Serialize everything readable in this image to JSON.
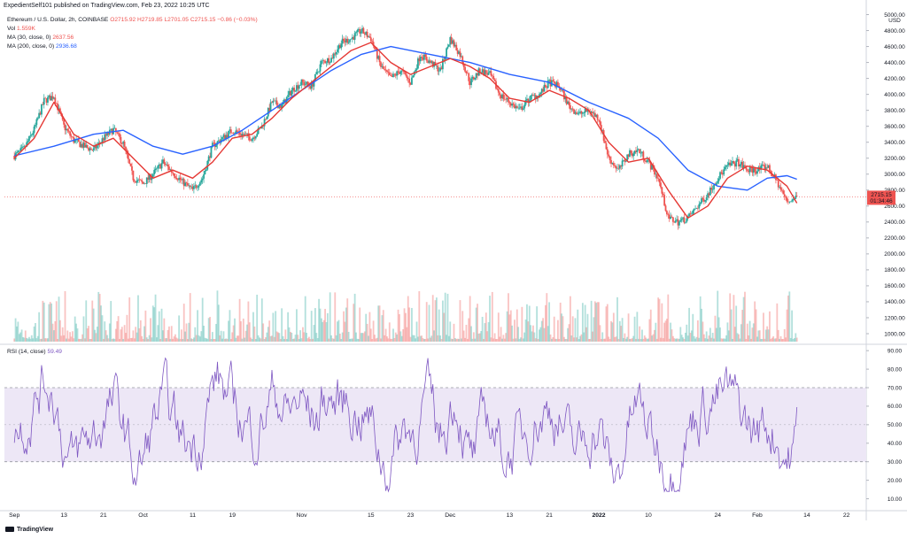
{
  "header": {
    "publisher": "ExpedientSelf101 published on TradingView.com, Feb 23, 2022 10:25 UTC"
  },
  "legend": {
    "symbol": "Ethereum / U.S. Dollar, 2h, COINBASE",
    "open": "O2715.92",
    "high": "H2719.85",
    "low": "L2701.05",
    "close": "C2715.15",
    "change": "−0.86 (−0.03%)",
    "vol_label": "Vol",
    "vol_value": "1.559K",
    "ma30_label": "MA (30, close, 0)",
    "ma30_value": "2637.56",
    "ma200_label": "MA (200, close, 0)",
    "ma200_value": "2936.68",
    "rsi_label": "RSI (14, close)",
    "rsi_value": "59.49"
  },
  "price_badge": {
    "price": "2715.15",
    "countdown": "01:34:46"
  },
  "currency_label": "USD",
  "footer": {
    "brand": "TradingView"
  },
  "colors": {
    "up": "#26a69a",
    "down": "#ef5350",
    "ma30": "#e53935",
    "ma200": "#2962ff",
    "rsi": "#7e57c2",
    "rsi_band": "#ede7f6"
  },
  "chart_data": [
    {
      "type": "candlestick",
      "panel": "price",
      "yticks": [
        1000,
        1200,
        1400,
        1600,
        1800,
        2000,
        2200,
        2400,
        2600,
        2800,
        3000,
        3200,
        3400,
        3600,
        3800,
        4000,
        4200,
        4400,
        4600,
        4800,
        5000
      ],
      "yticks_labels": [
        "1000.00",
        "1200.00",
        "1400.00",
        "1600.00",
        "1800.00",
        "2000.00",
        "2200.00",
        "2400.00",
        "2600.00",
        "2800.00",
        "3000.00",
        "3200.00",
        "3400.00",
        "3600.00",
        "3800.00",
        "4000.00",
        "4200.00",
        "4400.00",
        "4600.00",
        "4800.00",
        "5000.00"
      ],
      "ylim": [
        900,
        5050
      ],
      "x_ticks": [
        "Sep",
        "13",
        "21",
        "Oct",
        "11",
        "19",
        "Nov",
        "15",
        "23",
        "Dec",
        "13",
        "21",
        "2022",
        "10",
        "24",
        "Feb",
        "14",
        "22"
      ],
      "x_ticks_day_index": [
        0,
        10,
        18,
        26,
        36,
        44,
        58,
        72,
        80,
        88,
        100,
        108,
        118,
        128,
        142,
        150,
        160,
        168
      ],
      "x_range_days": [
        -2,
        172
      ],
      "close_series": [
        [
          0,
          3230
        ],
        [
          2,
          3320
        ],
        [
          4,
          3560
        ],
        [
          6,
          3920
        ],
        [
          8,
          3980
        ],
        [
          10,
          3600
        ],
        [
          12,
          3420
        ],
        [
          14,
          3350
        ],
        [
          16,
          3300
        ],
        [
          18,
          3450
        ],
        [
          20,
          3560
        ],
        [
          22,
          3380
        ],
        [
          24,
          2950
        ],
        [
          26,
          2880
        ],
        [
          28,
          3000
        ],
        [
          30,
          3150
        ],
        [
          32,
          3020
        ],
        [
          34,
          2900
        ],
        [
          36,
          2800
        ],
        [
          38,
          2950
        ],
        [
          40,
          3350
        ],
        [
          42,
          3450
        ],
        [
          44,
          3550
        ],
        [
          46,
          3500
        ],
        [
          48,
          3450
        ],
        [
          50,
          3600
        ],
        [
          52,
          3900
        ],
        [
          54,
          3850
        ],
        [
          56,
          4050
        ],
        [
          58,
          4150
        ],
        [
          60,
          4100
        ],
        [
          62,
          4400
        ],
        [
          64,
          4450
        ],
        [
          66,
          4650
        ],
        [
          68,
          4700
        ],
        [
          70,
          4800
        ],
        [
          72,
          4700
        ],
        [
          74,
          4350
        ],
        [
          76,
          4200
        ],
        [
          78,
          4300
        ],
        [
          80,
          4150
        ],
        [
          82,
          4500
        ],
        [
          84,
          4400
        ],
        [
          86,
          4300
        ],
        [
          88,
          4700
        ],
        [
          90,
          4500
        ],
        [
          92,
          4150
        ],
        [
          94,
          4300
        ],
        [
          96,
          4250
        ],
        [
          98,
          4000
        ],
        [
          100,
          3900
        ],
        [
          102,
          3800
        ],
        [
          104,
          3950
        ],
        [
          106,
          4000
        ],
        [
          108,
          4150
        ],
        [
          110,
          4100
        ],
        [
          112,
          3850
        ],
        [
          114,
          3750
        ],
        [
          116,
          3800
        ],
        [
          118,
          3700
        ],
        [
          120,
          3200
        ],
        [
          122,
          3050
        ],
        [
          124,
          3250
        ],
        [
          126,
          3300
        ],
        [
          128,
          3150
        ],
        [
          130,
          2950
        ],
        [
          132,
          2450
        ],
        [
          134,
          2400
        ],
        [
          136,
          2450
        ],
        [
          138,
          2600
        ],
        [
          140,
          2750
        ],
        [
          142,
          2950
        ],
        [
          144,
          3100
        ],
        [
          146,
          3150
        ],
        [
          148,
          3050
        ],
        [
          150,
          3050
        ],
        [
          152,
          3100
        ],
        [
          154,
          2900
        ],
        [
          156,
          2650
        ],
        [
          158,
          2715
        ]
      ],
      "ma30_series": [
        [
          0,
          3200
        ],
        [
          4,
          3450
        ],
        [
          8,
          3900
        ],
        [
          12,
          3500
        ],
        [
          16,
          3350
        ],
        [
          20,
          3450
        ],
        [
          24,
          3200
        ],
        [
          28,
          2950
        ],
        [
          32,
          3050
        ],
        [
          36,
          2950
        ],
        [
          40,
          3150
        ],
        [
          44,
          3450
        ],
        [
          48,
          3500
        ],
        [
          52,
          3700
        ],
        [
          56,
          3950
        ],
        [
          60,
          4150
        ],
        [
          64,
          4350
        ],
        [
          68,
          4550
        ],
        [
          72,
          4650
        ],
        [
          76,
          4400
        ],
        [
          80,
          4250
        ],
        [
          84,
          4350
        ],
        [
          88,
          4450
        ],
        [
          92,
          4350
        ],
        [
          96,
          4200
        ],
        [
          100,
          3950
        ],
        [
          104,
          3900
        ],
        [
          108,
          4050
        ],
        [
          112,
          3950
        ],
        [
          116,
          3800
        ],
        [
          120,
          3400
        ],
        [
          124,
          3150
        ],
        [
          128,
          3200
        ],
        [
          132,
          2800
        ],
        [
          136,
          2450
        ],
        [
          140,
          2600
        ],
        [
          144,
          2950
        ],
        [
          148,
          3100
        ],
        [
          152,
          3050
        ],
        [
          156,
          2850
        ],
        [
          158,
          2637
        ]
      ],
      "ma200_series": [
        [
          0,
          3230
        ],
        [
          8,
          3350
        ],
        [
          16,
          3500
        ],
        [
          22,
          3550
        ],
        [
          28,
          3350
        ],
        [
          34,
          3250
        ],
        [
          40,
          3350
        ],
        [
          46,
          3550
        ],
        [
          52,
          3800
        ],
        [
          58,
          4050
        ],
        [
          64,
          4300
        ],
        [
          70,
          4500
        ],
        [
          76,
          4600
        ],
        [
          84,
          4500
        ],
        [
          92,
          4400
        ],
        [
          100,
          4250
        ],
        [
          108,
          4150
        ],
        [
          116,
          3900
        ],
        [
          124,
          3700
        ],
        [
          130,
          3450
        ],
        [
          136,
          3050
        ],
        [
          142,
          2850
        ],
        [
          148,
          2800
        ],
        [
          152,
          2950
        ],
        [
          156,
          2980
        ],
        [
          158,
          2936
        ]
      ]
    },
    {
      "type": "bar",
      "panel": "volume",
      "yticks": [
        1000,
        1200,
        1400,
        1600
      ],
      "yticks_labels": [
        "1000.00",
        "1200.00",
        "1400.00",
        "1600.00"
      ],
      "description_series": "volume bars coloured by candle direction"
    },
    {
      "type": "line",
      "panel": "rsi",
      "ylim": [
        5,
        92
      ],
      "yticks": [
        10,
        20,
        30,
        40,
        50,
        60,
        70,
        80,
        90
      ],
      "yticks_labels": [
        "10.00",
        "20.00",
        "30.00",
        "40.00",
        "50.00",
        "60.00",
        "70.00",
        "80.00",
        "90.00"
      ],
      "overbought": 70,
      "oversold": 30,
      "midline": 50,
      "last_value": 59.49
    }
  ]
}
